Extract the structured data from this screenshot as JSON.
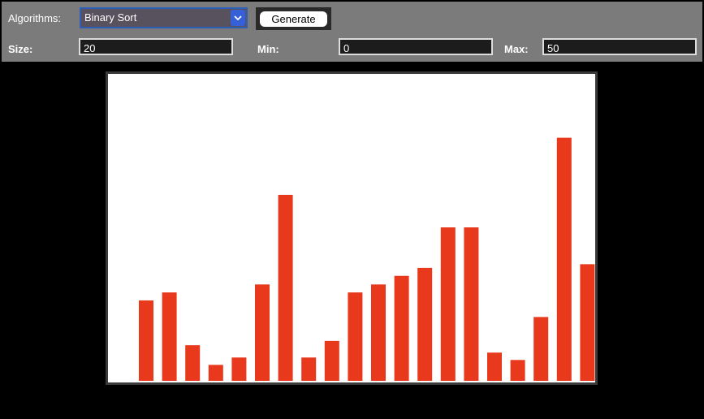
{
  "toolbar": {
    "algorithm_label": "Algorithms:",
    "algorithm": "Binary Sort",
    "generate": "Generate",
    "size_label": "Size:",
    "size": 20,
    "min_label": "Min:",
    "min": 0,
    "max_label": "Max:",
    "max": 50
  },
  "chart_data": {
    "type": "bar",
    "values": [
      13.1,
      14.4,
      5.8,
      2.6,
      3.8,
      15.7,
      30.3,
      3.8,
      6.5,
      14.4,
      15.7,
      17.1,
      18.4,
      25.0,
      25.0,
      4.6,
      3.4,
      10.4,
      39.6,
      19.0
    ],
    "color": "#e8391d"
  }
}
